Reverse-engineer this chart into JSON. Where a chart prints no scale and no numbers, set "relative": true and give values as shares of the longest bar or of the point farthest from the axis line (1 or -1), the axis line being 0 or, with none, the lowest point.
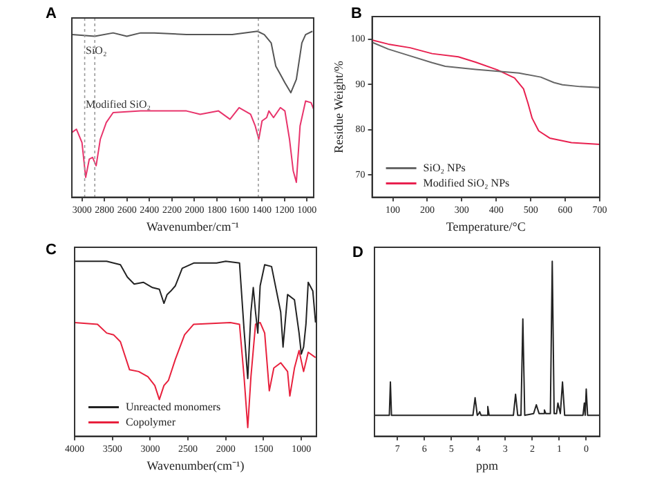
{
  "chart_data": [
    {
      "type": "line",
      "title": "A",
      "xlabel": "Wavenumber/cm⁻¹",
      "relative": true,
      "tick_labels": "x",
      "xlim": [
        3090,
        940
      ],
      "xticks": [
        3000,
        2800,
        2600,
        2400,
        2200,
        2000,
        1800,
        1600,
        1400,
        1200,
        1000
      ],
      "series": [
        {
          "name": "SiO₂",
          "color": "#555555",
          "x": [
            3090,
            2886,
            2723,
            2601,
            2479,
            2356,
            2071,
            1664,
            1440,
            1379,
            1318,
            1277,
            1236,
            1196,
            1143,
            1094,
            1045,
            1012,
            951
          ],
          "values": [
            0.98,
            0.97,
            0.99,
            0.97,
            0.99,
            0.99,
            0.98,
            0.98,
            1.0,
            0.98,
            0.93,
            0.79,
            0.74,
            0.69,
            0.63,
            0.71,
            0.93,
            0.98,
            1.0
          ]
        },
        {
          "name": "Modified SiO₂",
          "color": "#e8336b",
          "x": [
            3090,
            3049,
            3000,
            2967,
            2935,
            2906,
            2874,
            2837,
            2784,
            2723,
            2479,
            2071,
            1949,
            1786,
            1684,
            1603,
            1501,
            1460,
            1428,
            1399,
            1358,
            1338,
            1297,
            1236,
            1196,
            1155,
            1122,
            1094,
            1061,
            1012,
            963,
            940
          ],
          "values": [
            0.39,
            0.41,
            0.33,
            0.12,
            0.23,
            0.24,
            0.19,
            0.35,
            0.45,
            0.51,
            0.52,
            0.52,
            0.5,
            0.52,
            0.47,
            0.54,
            0.5,
            0.43,
            0.35,
            0.46,
            0.48,
            0.52,
            0.48,
            0.54,
            0.52,
            0.35,
            0.16,
            0.09,
            0.43,
            0.58,
            0.57,
            0.53
          ]
        }
      ],
      "ref_lines": [
        {
          "axis": "x",
          "value": 2976,
          "color": "#999999",
          "line_style": "dotted"
        },
        {
          "axis": "x",
          "value": 2886,
          "color": "#999999",
          "line_style": "dotted"
        },
        {
          "axis": "x",
          "value": 1432,
          "color": "#999999",
          "line_style": "dotted"
        }
      ]
    },
    {
      "type": "line",
      "title": "B",
      "xlabel": "Temperature/°C",
      "ylabel": "Residue Weight/%",
      "xlim": [
        40,
        700
      ],
      "xticks": [
        100,
        200,
        300,
        400,
        500,
        600,
        700
      ],
      "ylim": [
        65,
        105
      ],
      "yticks": [
        70,
        80,
        90,
        100
      ],
      "legend": "bottom left",
      "series": [
        {
          "name": "SiO₂ NPs",
          "color": "#666666",
          "x": [
            40,
            87,
            150,
            214,
            252,
            340,
            466,
            529,
            567,
            592,
            643,
            700
          ],
          "values": [
            99.3,
            97.8,
            96.3,
            94.8,
            94.0,
            93.3,
            92.5,
            91.6,
            90.4,
            89.9,
            89.5,
            89.3
          ]
        },
        {
          "name": "Modified SiO₂ NPs",
          "color": "#e8204f",
          "x": [
            40,
            87,
            150,
            214,
            290,
            340,
            403,
            453,
            479,
            492,
            504,
            523,
            555,
            618,
            700
          ],
          "values": [
            99.8,
            98.9,
            98.1,
            96.8,
            96.1,
            94.9,
            93.2,
            91.4,
            89.0,
            85.8,
            82.5,
            79.7,
            78.1,
            77.1,
            76.7
          ]
        }
      ]
    },
    {
      "type": "line",
      "title": "C",
      "xlabel": "Wavenumber(cm⁻¹)",
      "relative": true,
      "tick_labels": "x",
      "xlim": [
        4000,
        800
      ],
      "xticks": [
        4000,
        3500,
        3000,
        2500,
        2000,
        1500,
        1000
      ],
      "legend": "bottom left",
      "series": [
        {
          "name": "Unreacted monomers",
          "color": "#222222",
          "x": [
            4000,
            3576,
            3394,
            3303,
            3212,
            3091,
            2970,
            2879,
            2818,
            2776,
            2727,
            2667,
            2576,
            2424,
            2303,
            2121,
            2000,
            1818,
            1758,
            1709,
            1667,
            1636,
            1606,
            1576,
            1545,
            1485,
            1394,
            1273,
            1242,
            1182,
            1091,
            1030,
            1000,
            970,
            939,
            909,
            848,
            812
          ],
          "values": [
            1.0,
            1.0,
            0.98,
            0.91,
            0.87,
            0.88,
            0.85,
            0.84,
            0.76,
            0.81,
            0.83,
            0.86,
            0.96,
            0.99,
            0.99,
            0.99,
            1.0,
            0.99,
            0.61,
            0.33,
            0.71,
            0.85,
            0.71,
            0.59,
            0.86,
            0.98,
            0.97,
            0.71,
            0.51,
            0.81,
            0.78,
            0.59,
            0.47,
            0.51,
            0.64,
            0.88,
            0.83,
            0.65
          ]
        },
        {
          "name": "Copolymer",
          "color": "#e8203c",
          "x": [
            4000,
            3697,
            3576,
            3485,
            3394,
            3273,
            3152,
            3030,
            2939,
            2879,
            2818,
            2758,
            2667,
            2545,
            2424,
            1939,
            1818,
            1758,
            1709,
            1667,
            1606,
            1545,
            1485,
            1424,
            1364,
            1273,
            1182,
            1152,
            1091,
            1030,
            970,
            909,
            812
          ],
          "values": [
            0.65,
            0.64,
            0.59,
            0.58,
            0.54,
            0.38,
            0.37,
            0.34,
            0.29,
            0.21,
            0.29,
            0.32,
            0.44,
            0.58,
            0.64,
            0.65,
            0.64,
            0.34,
            0.05,
            0.34,
            0.64,
            0.65,
            0.59,
            0.26,
            0.39,
            0.42,
            0.37,
            0.23,
            0.39,
            0.49,
            0.37,
            0.48,
            0.45
          ]
        }
      ]
    },
    {
      "type": "line",
      "title": "D",
      "xlabel": "ppm",
      "relative": true,
      "tick_labels": "x",
      "xlim": [
        7.85,
        -0.5
      ],
      "xticks": [
        7,
        6,
        5,
        4,
        3,
        2,
        1,
        0
      ],
      "series": [
        {
          "color": "#222222",
          "x": [
            7.85,
            7.3,
            7.26,
            7.22,
            4.2,
            4.12,
            4.04,
            3.98,
            3.95,
            3.9,
            3.7,
            3.65,
            3.6,
            2.7,
            2.62,
            2.54,
            2.42,
            2.35,
            2.28,
            1.95,
            1.85,
            1.75,
            1.6,
            1.55,
            1.5,
            1.33,
            1.26,
            1.19,
            1.1,
            1.05,
            0.96,
            0.88,
            0.8,
            0.12,
            0.07,
            0.04,
            0.0,
            -0.05,
            -0.5
          ],
          "values": [
            0.12,
            0.12,
            0.31,
            0.12,
            0.12,
            0.22,
            0.12,
            0.13,
            0.14,
            0.12,
            0.12,
            0.17,
            0.12,
            0.12,
            0.24,
            0.12,
            0.12,
            0.67,
            0.12,
            0.13,
            0.18,
            0.13,
            0.13,
            0.15,
            0.13,
            0.13,
            1.0,
            0.13,
            0.13,
            0.19,
            0.13,
            0.31,
            0.12,
            0.12,
            0.19,
            0.12,
            0.27,
            0.12,
            0.12
          ]
        }
      ]
    }
  ]
}
